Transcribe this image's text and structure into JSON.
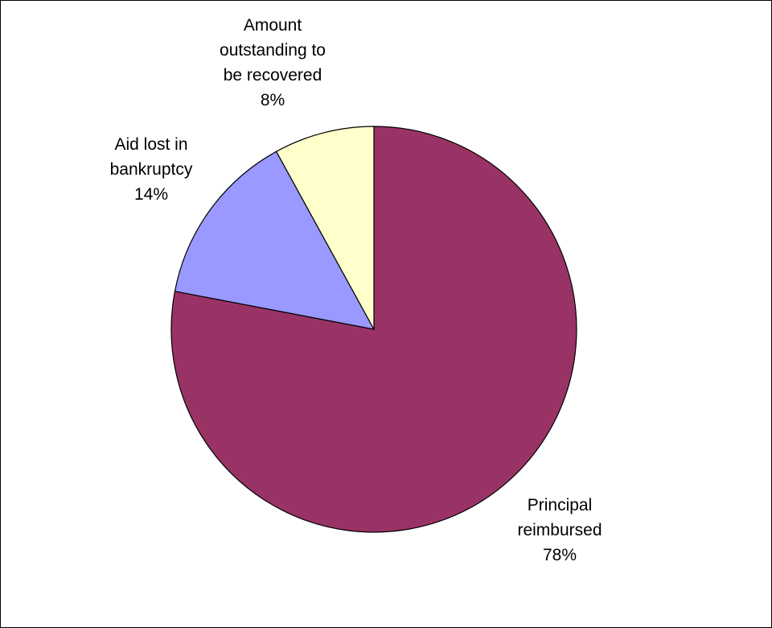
{
  "chart_data": {
    "type": "pie",
    "start": "12 o'clock",
    "direction": "clockwise",
    "slices": [
      {
        "label_lines": [
          "Principal",
          "reimbursed"
        ],
        "pct_label": "78%",
        "value": 78,
        "color": "#993366"
      },
      {
        "label_lines": [
          "Aid lost in",
          "bankruptcy"
        ],
        "pct_label": "14%",
        "value": 14,
        "color": "#9999FF"
      },
      {
        "label_lines": [
          "Amount",
          "outstanding to",
          "be recovered"
        ],
        "pct_label": "8%",
        "value": 8,
        "color": "#FFFFCC"
      }
    ],
    "legend": "none"
  }
}
